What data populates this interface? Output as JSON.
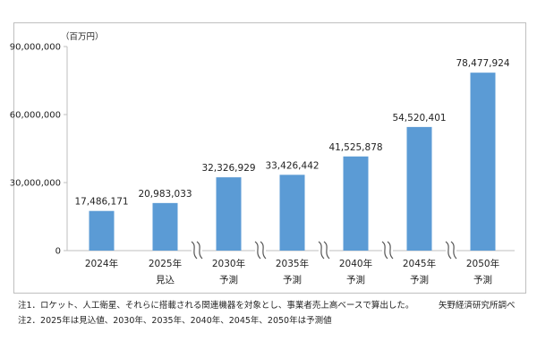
{
  "chart_data": {
    "type": "bar",
    "unit_label": "（百万円）",
    "categories": [
      {
        "year": "2024年",
        "sub": ""
      },
      {
        "year": "2025年",
        "sub": "見込"
      },
      {
        "year": "2030年",
        "sub": "予測"
      },
      {
        "year": "2035年",
        "sub": "予測"
      },
      {
        "year": "2040年",
        "sub": "予測"
      },
      {
        "year": "2045年",
        "sub": "予測"
      },
      {
        "year": "2050年",
        "sub": "予測"
      }
    ],
    "values": [
      17486171,
      20983033,
      32326929,
      33426442,
      41525878,
      54520401,
      78477924
    ],
    "value_labels": [
      "17,486,171",
      "20,983,033",
      "32,326,929",
      "33,426,442",
      "41,525,878",
      "54,520,401",
      "78,477,924"
    ],
    "y_ticks": [
      {
        "value": 0,
        "label": "0"
      },
      {
        "value": 30000000,
        "label": "30,000,000"
      },
      {
        "value": 60000000,
        "label": "60,000,000"
      },
      {
        "value": 90000000,
        "label": "90,000,000"
      }
    ],
    "ylim": [
      0,
      90000000
    ],
    "axis_breaks_after_index": [
      1,
      2,
      3,
      4,
      5
    ],
    "bar_color": "#5b9bd5",
    "grid": false
  },
  "notes": {
    "note1": "注1．ロケット、人工衛星、それらに搭載される関連機器を対象とし、事業者売上高ベースで算出した。",
    "note2": "注2．2025年は見込値、2030年、2035年、2040年、2045年、2050年は予測値",
    "source": "矢野経済研究所調べ"
  }
}
